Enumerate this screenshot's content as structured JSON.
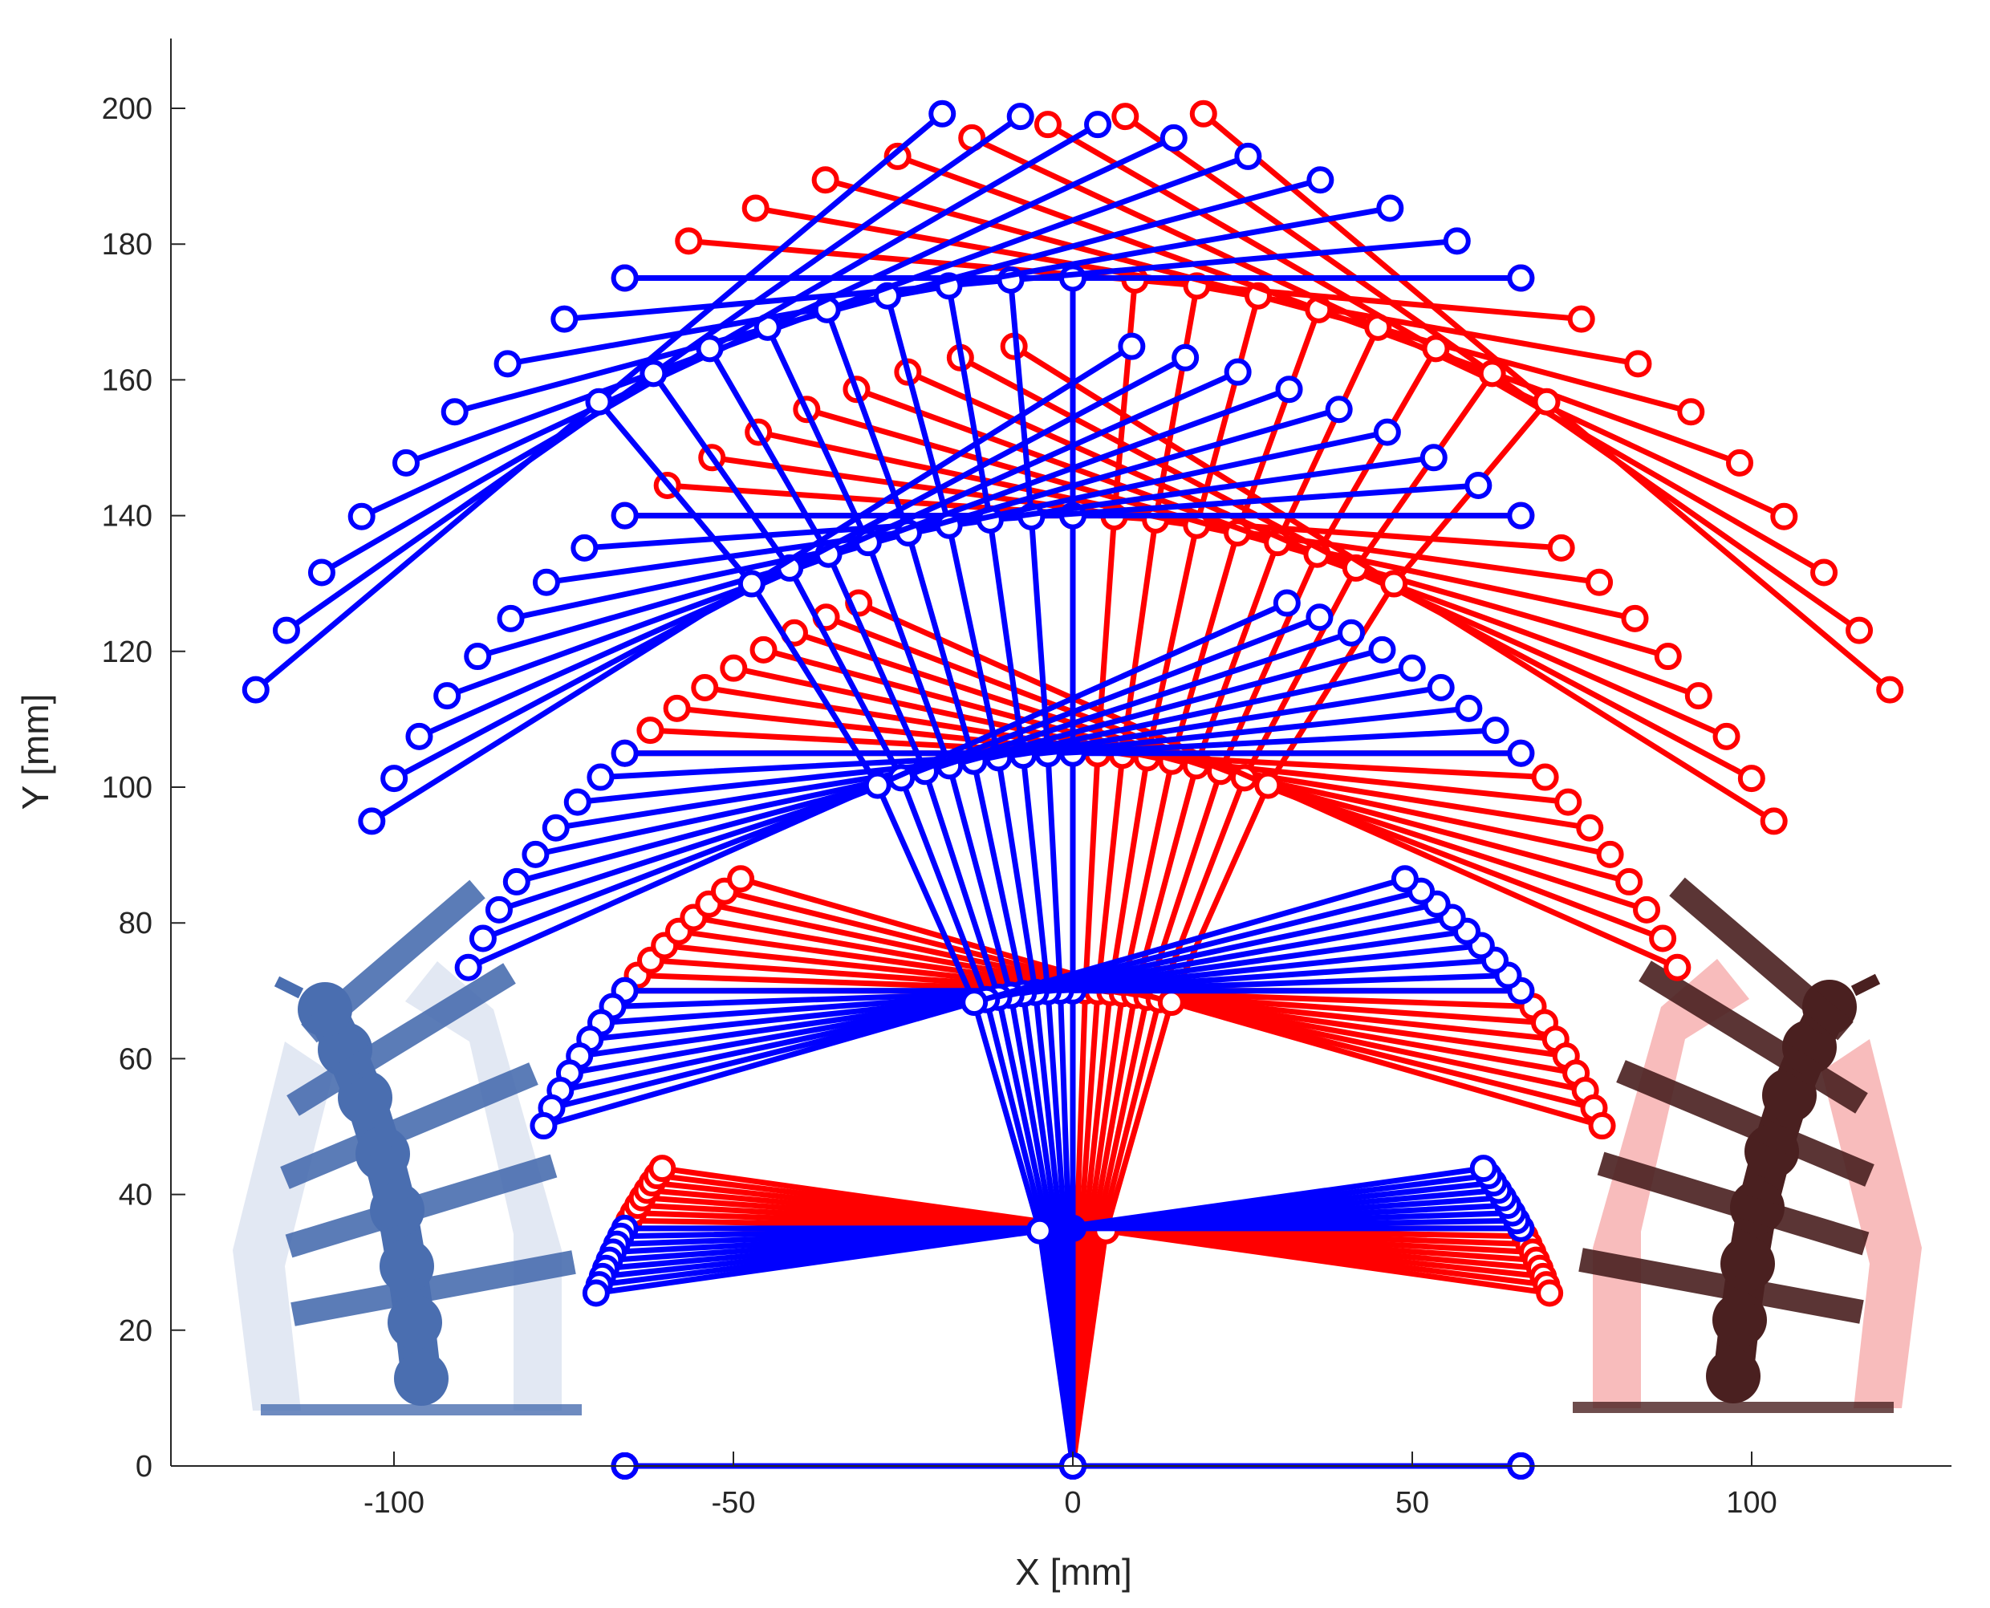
{
  "chart_data": {
    "type": "line",
    "xlabel": "X [mm]",
    "ylabel": "Y [mm]",
    "xlim": [
      -132,
      130
    ],
    "ylim": [
      -10,
      210
    ],
    "xticks": [
      -100,
      -50,
      0,
      50,
      100
    ],
    "yticks": [
      0,
      20,
      40,
      60,
      80,
      100,
      120,
      140,
      160,
      180,
      200
    ],
    "xtick_labels": [
      "-100",
      "-50",
      "0",
      "50",
      "100"
    ],
    "ytick_labels": [
      "0",
      "20",
      "40",
      "60",
      "80",
      "100",
      "120",
      "140",
      "160",
      "180",
      "200"
    ],
    "grid": false,
    "legend": "none",
    "link_half_width": 66,
    "link_spacing": 35,
    "levels": 6,
    "bend_angles_deg": [
      0,
      1,
      2,
      3,
      4,
      5,
      6,
      7,
      8
    ],
    "series": [
      {
        "color": "#ff0000",
        "direction": 1
      },
      {
        "color": "#0000ff",
        "direction": -1
      }
    ],
    "insets": [
      {
        "side": "left",
        "color": "#4a6eb0",
        "band_color": "#dde4f1"
      },
      {
        "side": "right",
        "color": "#4a2020",
        "band_color": "#f7b0b0"
      }
    ]
  }
}
